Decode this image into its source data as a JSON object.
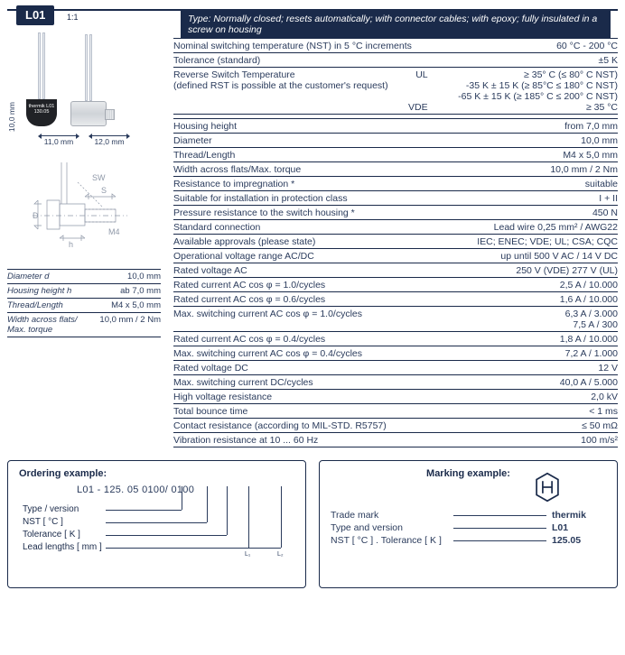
{
  "product_code": "L01",
  "scale": "1:1",
  "type_bar": "Type: Normally closed; resets automatically; with connector cables; with epoxy; fully insulated in a screw on housing",
  "diagram": {
    "height_label": "10,0 mm",
    "width1": "11,0 mm",
    "width2": "12,0 mm",
    "cap_text": "thermik\nL01\n130.05",
    "tech_labels": {
      "sw": "SW",
      "d": "D",
      "s": "S",
      "h": "h",
      "m4": "M4"
    }
  },
  "mini_table": [
    {
      "label": "Diameter d",
      "value": "10,0 mm"
    },
    {
      "label": "Housing height h",
      "value": "ab 7,0 mm"
    },
    {
      "label": "Thread/Length",
      "value": "M4 x 5,0 mm"
    },
    {
      "label": "Width across flats/\nMax. torque",
      "value": "10,0 mm / 2 Nm"
    }
  ],
  "spec_group_1": [
    {
      "label": "Nominal switching temperature (NST) in 5 °C increments",
      "value": "60 °C - 200 °C"
    },
    {
      "label": "Tolerance (standard)",
      "value": "±5 K"
    },
    {
      "label": "Reverse Switch Temperature\n(defined RST is possible at the customer's request)",
      "mid": "UL\n\n\nVDE",
      "value": "≥ 35° C (≤ 80° C NST)\n-35 K ± 15 K (≥ 85°C  ≤ 180° C NST)\n-65 K ± 15 K (≥ 185° C ≤ 200° C NST)\n≥ 35 °C"
    }
  ],
  "spec_group_2": [
    {
      "label": "Housing height",
      "value": "from 7,0 mm"
    },
    {
      "label": "Diameter",
      "value": "10,0 mm"
    },
    {
      "label": "Thread/Length",
      "value": "M4 x 5,0 mm"
    },
    {
      "label": "Width across flats/Max. torque",
      "value": "10,0 mm / 2 Nm"
    },
    {
      "label": "Resistance to impregnation *",
      "value": "suitable"
    },
    {
      "label": "Suitable for installation in protection class",
      "value": "I + II"
    },
    {
      "label": "Pressure resistance to the switch housing *",
      "value": "450 N"
    },
    {
      "label": "Standard connection",
      "value": "Lead wire 0,25 mm² / AWG22"
    },
    {
      "label": "Available approvals (please state)",
      "value": "IEC; ENEC; VDE; UL; CSA; CQC"
    },
    {
      "label": "Operational voltage range AC/DC",
      "value": "up until 500 V AC / 14 V DC"
    },
    {
      "label": "Rated voltage AC",
      "value": "250 V (VDE) 277 V (UL)"
    },
    {
      "label": "Rated current AC cos φ = 1.0/cycles",
      "value": "2,5 A / 10.000"
    },
    {
      "label": "Rated current AC cos φ = 0.6/cycles",
      "value": "1,6 A / 10.000"
    },
    {
      "label": "Max. switching current  AC cos φ = 1.0/cycles",
      "value": "6,3 A / 3.000\n7,5 A / 300"
    },
    {
      "label": "Rated current AC cos φ = 0.4/cycles",
      "value": "1,8 A / 10.000"
    },
    {
      "label": "Max. switching current  AC cos φ = 0.4/cycles",
      "value": "7,2 A / 1.000"
    },
    {
      "label": "Rated voltage DC",
      "value": "12 V"
    },
    {
      "label": "Max. switching current DC/cycles",
      "value": "40,0 A / 5.000"
    },
    {
      "label": "High voltage resistance",
      "value": "2,0 kV"
    },
    {
      "label": "Total bounce time",
      "value": "< 1 ms"
    },
    {
      "label": "Contact resistance (according to MIL-STD. R5757)",
      "value": "≤ 50 mΩ"
    },
    {
      "label": "Vibration resistance at 10 ... 60 Hz",
      "value": "100 m/s²"
    }
  ],
  "ordering": {
    "title": "Ordering example:",
    "code": "L01 - 125. 05 0100/ 0100",
    "labels": [
      "Type / version",
      "NST [ °C ]",
      "Tolerance [ K ]",
      "Lead lengths [ mm ]"
    ],
    "l1": "L₁",
    "l2": "L₂"
  },
  "marking": {
    "title": "Marking example:",
    "rows": [
      {
        "l": "Trade mark",
        "r": "thermik"
      },
      {
        "l": "Type and version",
        "r": "L01"
      },
      {
        "l": "NST [ °C ] . Tolerance [ K ]",
        "r": "125.05"
      }
    ]
  }
}
